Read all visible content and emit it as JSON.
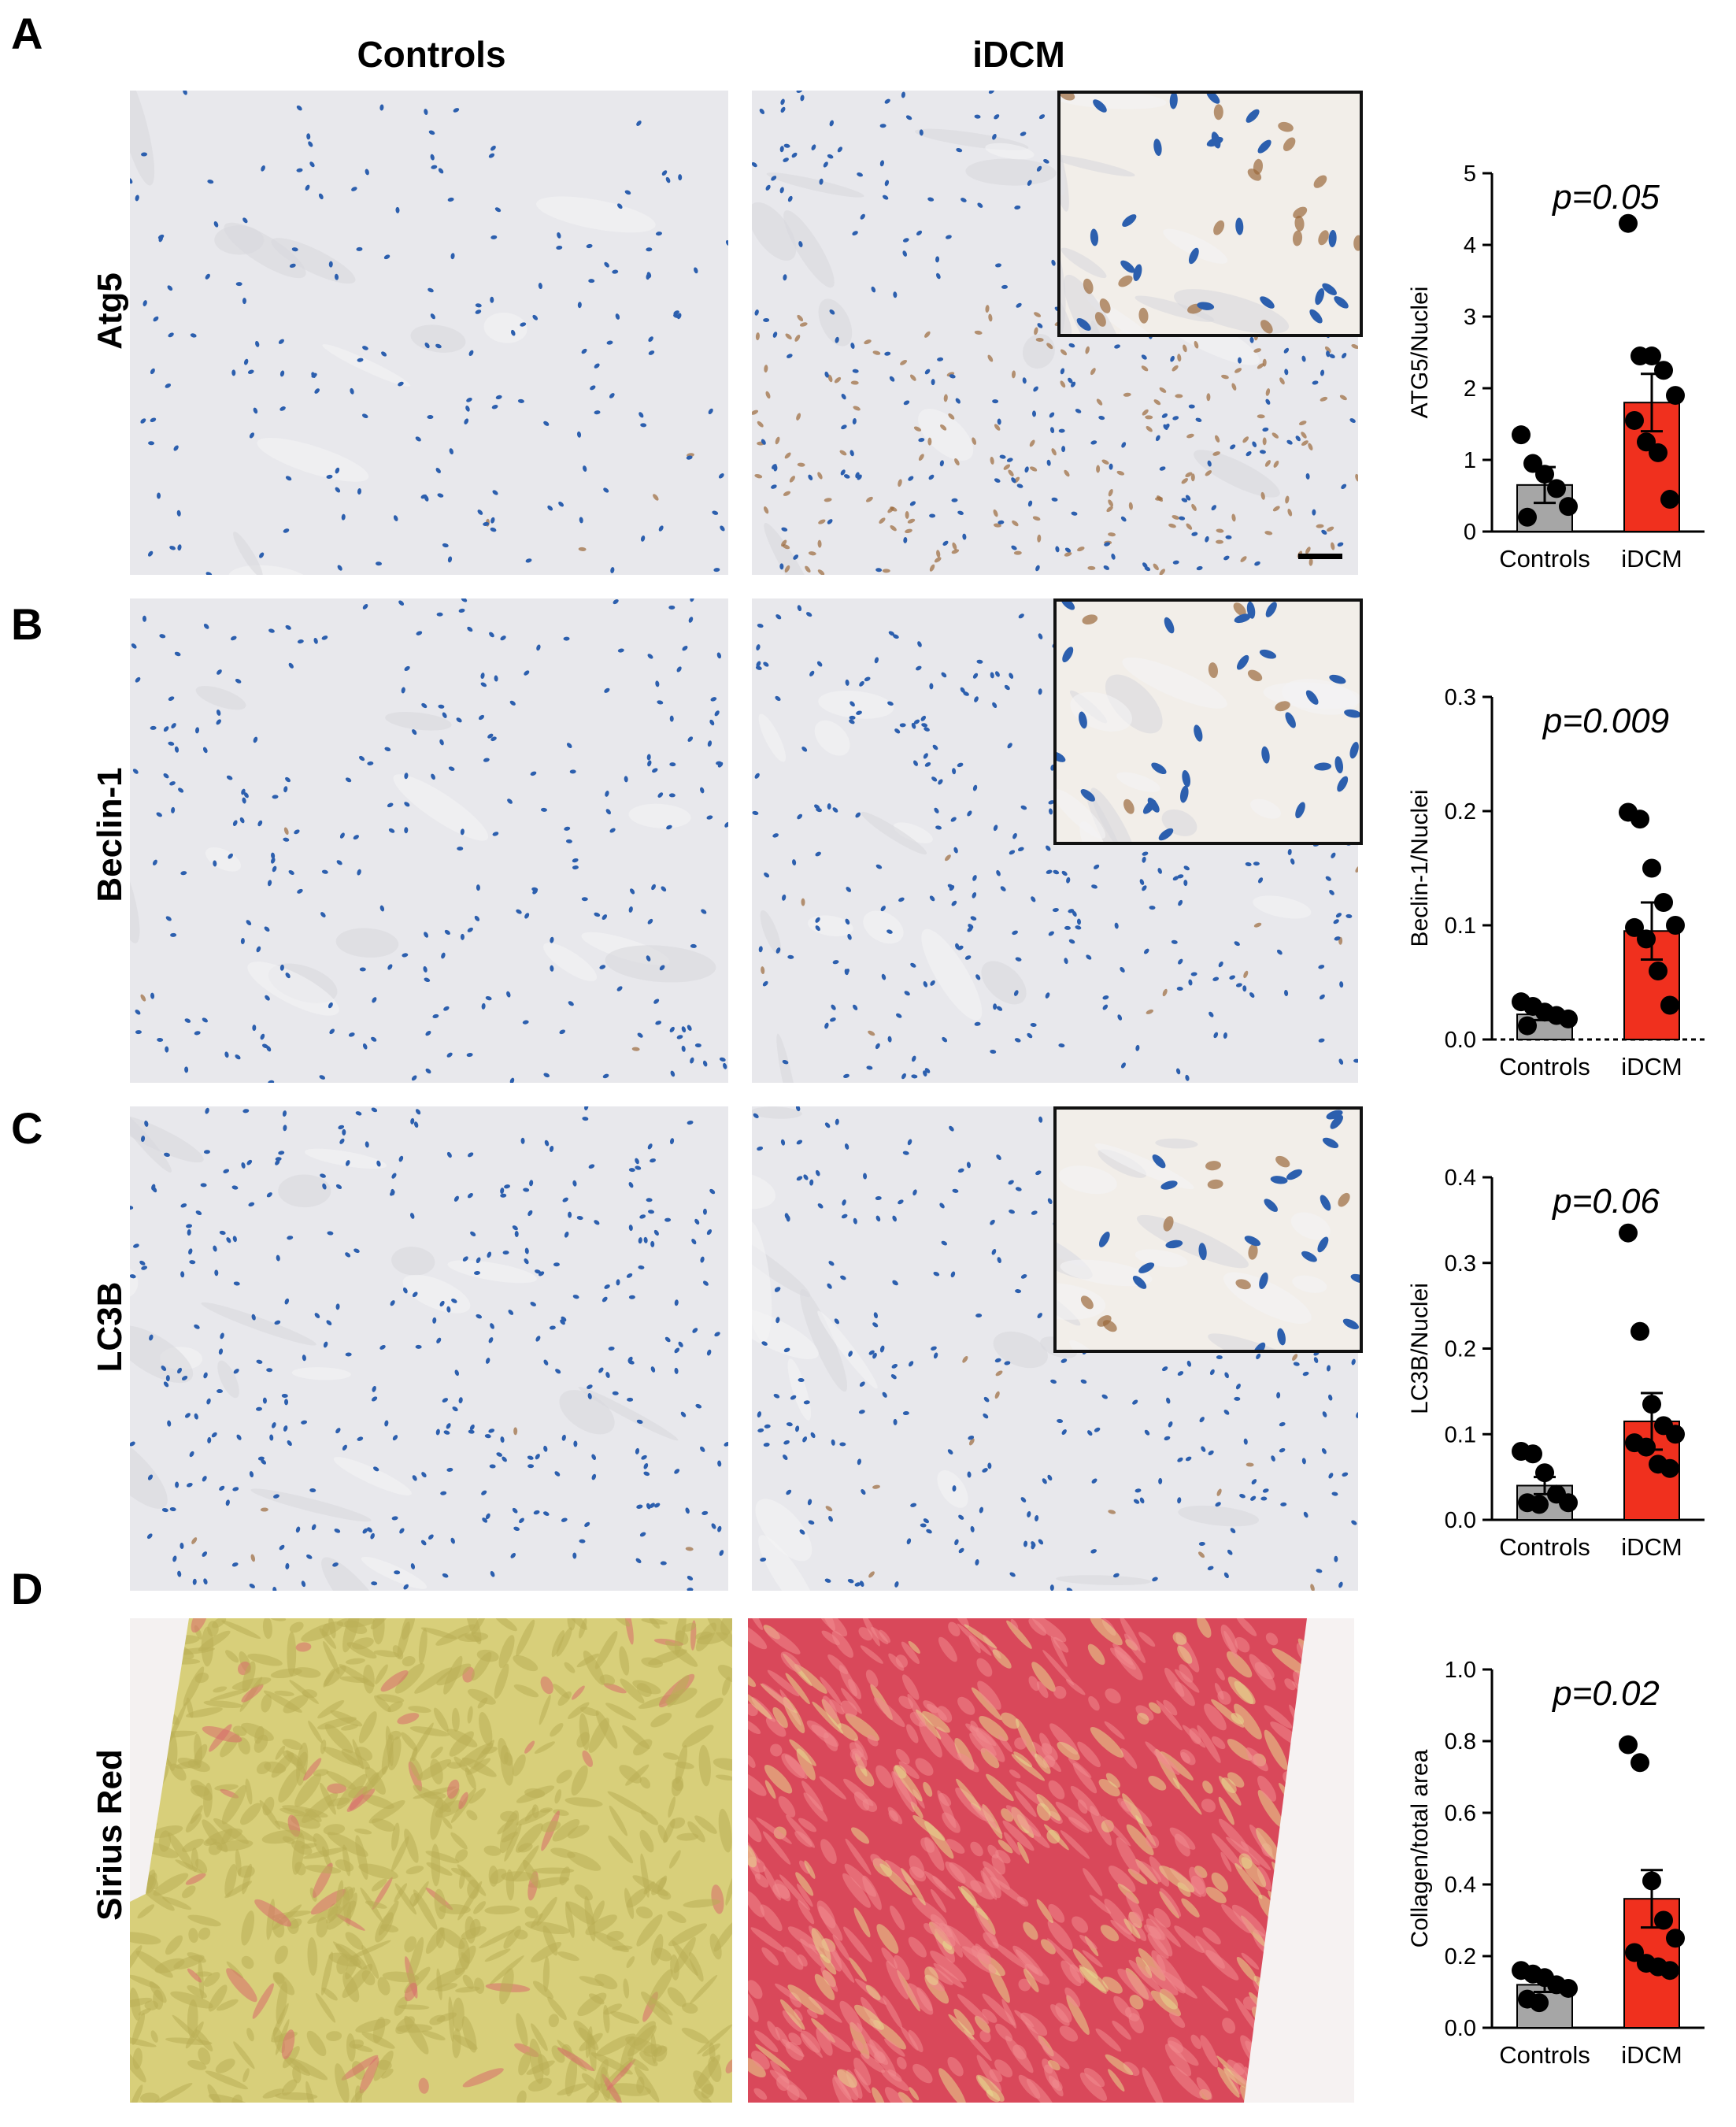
{
  "panels": [
    {
      "letter": "A",
      "row_label": "Atg5"
    },
    {
      "letter": "B",
      "row_label": "Beclin-1"
    },
    {
      "letter": "C",
      "row_label": "LC3B"
    },
    {
      "letter": "D",
      "row_label": "Sirius Red"
    }
  ],
  "columns": {
    "left": "Controls",
    "right": "iDCM"
  },
  "colors": {
    "controls_bar": "#a6a6a6",
    "idcm_bar": "#f0301e",
    "dot": "#000000",
    "ihc_bg": "#e8e8ec",
    "nuclei": "#2c5fae",
    "brown": "#9b6a3c",
    "sirius_yellow": "#d8cf7a",
    "sirius_red": "#d9485a"
  },
  "chart_data": [
    {
      "type": "bar",
      "categories": [
        "Controls",
        "iDCM"
      ],
      "values": [
        0.65,
        1.8
      ],
      "errors": [
        0.25,
        0.4
      ],
      "points": [
        [
          1.35,
          0.95,
          0.8,
          0.6,
          0.35,
          0.2
        ],
        [
          4.3,
          2.45,
          2.45,
          2.25,
          1.9,
          1.55,
          1.25,
          1.1,
          0.45
        ]
      ],
      "ylabel": "ATG5/Nuclei",
      "ylim": [
        0,
        5
      ],
      "yticks": [
        "0",
        "1",
        "2",
        "3",
        "4",
        "5"
      ],
      "annotation": "p=0.05",
      "dashed_zero": false
    },
    {
      "type": "bar",
      "categories": [
        "Controls",
        "iDCM"
      ],
      "values": [
        0.022,
        0.095
      ],
      "errors": [
        0.005,
        0.025
      ],
      "points": [
        [
          0.033,
          0.029,
          0.024,
          0.021,
          0.018,
          0.012
        ],
        [
          0.199,
          0.193,
          0.15,
          0.12,
          0.1,
          0.098,
          0.088,
          0.06,
          0.03
        ]
      ],
      "ylabel": "Beclin-1/Nuclei",
      "ylim": [
        0,
        0.3
      ],
      "yticks": [
        "0.0",
        "0.1",
        "0.2",
        "0.3"
      ],
      "annotation": "p=0.009",
      "dashed_zero": true
    },
    {
      "type": "bar",
      "categories": [
        "Controls",
        "iDCM"
      ],
      "values": [
        0.04,
        0.115
      ],
      "errors": [
        0.01,
        0.033
      ],
      "points": [
        [
          0.08,
          0.077,
          0.055,
          0.03,
          0.02,
          0.02,
          0.018
        ],
        [
          0.335,
          0.22,
          0.135,
          0.11,
          0.1,
          0.09,
          0.085,
          0.065,
          0.06
        ]
      ],
      "ylabel": "LC3B/Nuclei",
      "ylim": [
        0,
        0.4
      ],
      "yticks": [
        "0.0",
        "0.1",
        "0.2",
        "0.3",
        "0.4"
      ],
      "annotation": "p=0.06",
      "dashed_zero": false
    },
    {
      "type": "bar",
      "categories": [
        "Controls",
        "iDCM"
      ],
      "values": [
        0.12,
        0.36
      ],
      "errors": [
        0.02,
        0.08
      ],
      "points": [
        [
          0.16,
          0.15,
          0.14,
          0.12,
          0.11,
          0.08,
          0.07
        ],
        [
          0.79,
          0.74,
          0.41,
          0.3,
          0.25,
          0.21,
          0.18,
          0.17,
          0.16
        ]
      ],
      "ylabel": "Collagen/total area",
      "ylim": [
        0,
        1.0
      ],
      "yticks": [
        "0.0",
        "0.2",
        "0.4",
        "0.6",
        "0.8",
        "1.0"
      ],
      "annotation": "p=0.02",
      "dashed_zero": false
    }
  ]
}
